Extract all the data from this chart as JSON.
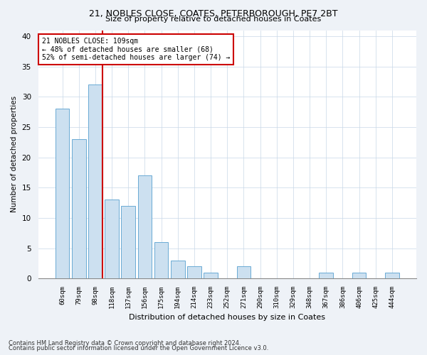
{
  "title1": "21, NOBLES CLOSE, COATES, PETERBOROUGH, PE7 2BT",
  "title2": "Size of property relative to detached houses in Coates",
  "xlabel": "Distribution of detached houses by size in Coates",
  "ylabel": "Number of detached properties",
  "categories": [
    "60sqm",
    "79sqm",
    "98sqm",
    "118sqm",
    "137sqm",
    "156sqm",
    "175sqm",
    "194sqm",
    "214sqm",
    "233sqm",
    "252sqm",
    "271sqm",
    "290sqm",
    "310sqm",
    "329sqm",
    "348sqm",
    "367sqm",
    "386sqm",
    "406sqm",
    "425sqm",
    "444sqm"
  ],
  "values": [
    28,
    23,
    32,
    13,
    12,
    17,
    6,
    3,
    2,
    1,
    0,
    2,
    0,
    0,
    0,
    0,
    1,
    0,
    1,
    0,
    1
  ],
  "bar_color": "#cce0f0",
  "bar_edgecolor": "#6aaad4",
  "vline_index": 2,
  "vline_color": "#cc0000",
  "annotation_lines": [
    "21 NOBLES CLOSE: 109sqm",
    "← 48% of detached houses are smaller (68)",
    "52% of semi-detached houses are larger (74) →"
  ],
  "annotation_box_color": "#cc0000",
  "ylim": [
    0,
    41
  ],
  "yticks": [
    0,
    5,
    10,
    15,
    20,
    25,
    30,
    35,
    40
  ],
  "footer1": "Contains HM Land Registry data © Crown copyright and database right 2024.",
  "footer2": "Contains public sector information licensed under the Open Government Licence v3.0.",
  "bg_color": "#eef2f7",
  "plot_bg_color": "#ffffff"
}
